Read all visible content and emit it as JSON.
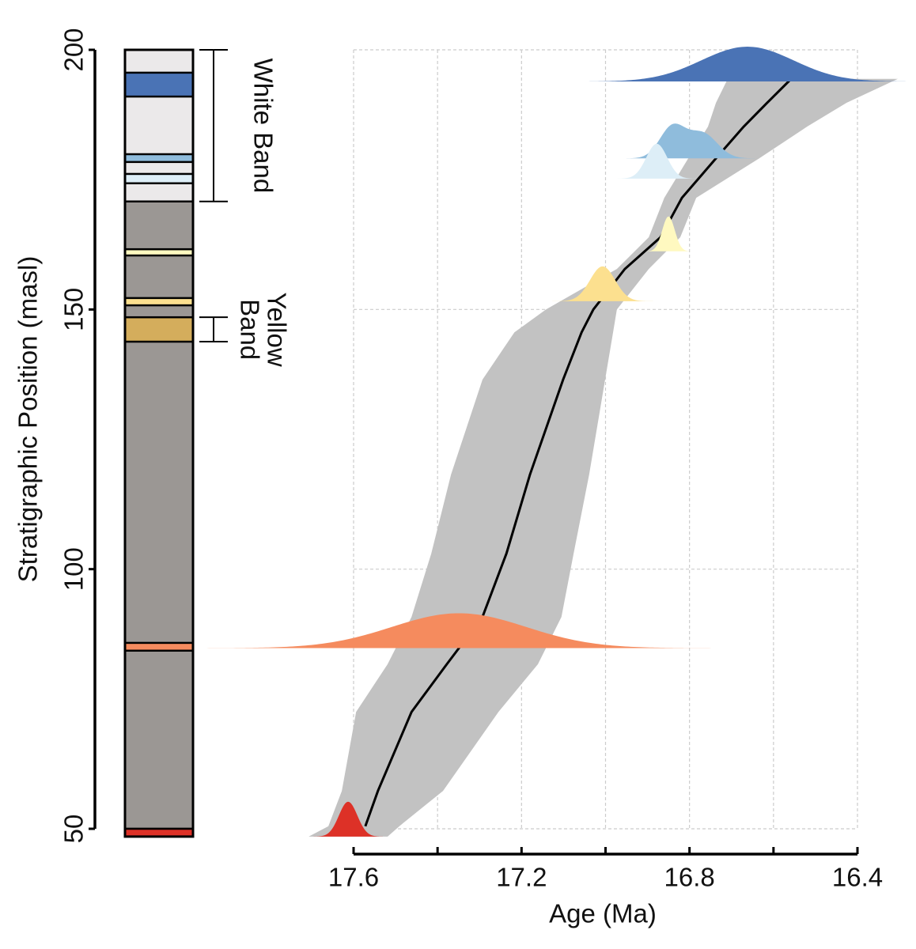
{
  "chart_data": {
    "type": "age-depth",
    "ylabel": "Stratigraphic Position (masl)",
    "xlabel": "Age (Ma)",
    "ylim": [
      50,
      200
    ],
    "yticks": [
      200,
      150,
      100,
      50
    ],
    "xlim": [
      17.6,
      16.4
    ],
    "xticks": [
      17.6,
      17.2,
      16.8,
      16.4
    ],
    "x_minor_ticks": [
      17.4,
      17.0,
      16.6
    ],
    "grid": true,
    "envelope": {
      "color": "#c2c2c2",
      "line_color": "#000000",
      "position": [
        48.5,
        50.5,
        57.3,
        72.5,
        81.7,
        90.8,
        103,
        118.2,
        136.5,
        145.6,
        150,
        157.8,
        163.9,
        171.5,
        179.1,
        185.2,
        189.8,
        194.4
      ],
      "older": [
        17.707,
        17.66,
        17.628,
        17.594,
        17.519,
        17.462,
        17.415,
        17.368,
        17.293,
        17.217,
        17.142,
        16.973,
        16.897,
        16.86,
        16.803,
        16.756,
        16.737,
        16.709
      ],
      "younger": [
        17.519,
        17.491,
        17.387,
        17.255,
        17.161,
        17.105,
        17.076,
        17.039,
        17.001,
        16.982,
        16.973,
        16.897,
        16.822,
        16.784,
        16.634,
        16.52,
        16.426,
        16.304
      ],
      "median": [
        null,
        17.572,
        17.542,
        17.462,
        17.378,
        17.293,
        17.236,
        17.18,
        17.101,
        17.057,
        17.029,
        16.954,
        16.869,
        16.818,
        16.737,
        16.671,
        16.615,
        16.558
      ]
    },
    "distributions": [
      {
        "position": 193.9,
        "color": "#4a73b5",
        "components": [
          {
            "mean": 16.662,
            "sd": 0.11,
            "weight": 1
          }
        ]
      },
      {
        "position": 179.1,
        "color": "#8fbcdc",
        "components": [
          {
            "mean": 16.841,
            "sd": 0.03,
            "weight": 1
          },
          {
            "mean": 16.769,
            "sd": 0.035,
            "weight": 0.8
          }
        ]
      },
      {
        "position": 175.2,
        "color": "#ddeef7",
        "components": [
          {
            "mean": 16.878,
            "sd": 0.025,
            "weight": 1
          }
        ]
      },
      {
        "position": 161.2,
        "color": "#fff9c0",
        "components": [
          {
            "mean": 16.85,
            "sd": 0.015,
            "weight": 1
          }
        ]
      },
      {
        "position": 151.6,
        "color": "#fce08f",
        "components": [
          {
            "mean": 17.007,
            "sd": 0.03,
            "weight": 1
          }
        ]
      },
      {
        "position": 84.8,
        "color": "#f58b5e",
        "components": [
          {
            "mean": 17.349,
            "sd": 0.16,
            "weight": 1
          }
        ]
      },
      {
        "position": 48.5,
        "color": "#dd3127",
        "components": [
          {
            "mean": 17.613,
            "sd": 0.022,
            "weight": 1
          }
        ]
      }
    ],
    "column": {
      "top": 200,
      "bottom": 48.5,
      "layers": [
        {
          "top": 200,
          "bottom": 170.8,
          "color": "#ebe9ea"
        },
        {
          "top": 195.6,
          "bottom": 191.0,
          "color": "#4a73b5"
        },
        {
          "top": 179.9,
          "bottom": 178.4,
          "color": "#8fbcdc"
        },
        {
          "top": 176.1,
          "bottom": 174.3,
          "color": "#ddeef7"
        },
        {
          "top": 170.8,
          "bottom": 50,
          "color": "#9b9794"
        },
        {
          "top": 161.6,
          "bottom": 160.4,
          "color": "#fff9c0"
        },
        {
          "top": 152.2,
          "bottom": 150.8,
          "color": "#fce08f"
        },
        {
          "top": 148.5,
          "bottom": 143.8,
          "color": "#d4ad5c"
        },
        {
          "top": 85.8,
          "bottom": 84.3,
          "color": "#f58b5e"
        },
        {
          "top": 50,
          "bottom": 48.5,
          "color": "#dd3127"
        }
      ]
    },
    "brackets": [
      {
        "lines": [
          "White Band"
        ],
        "top": 200,
        "bottom": 170.8
      },
      {
        "lines": [
          "Yellow",
          "Band"
        ],
        "top": 148.5,
        "bottom": 143.8
      }
    ]
  }
}
